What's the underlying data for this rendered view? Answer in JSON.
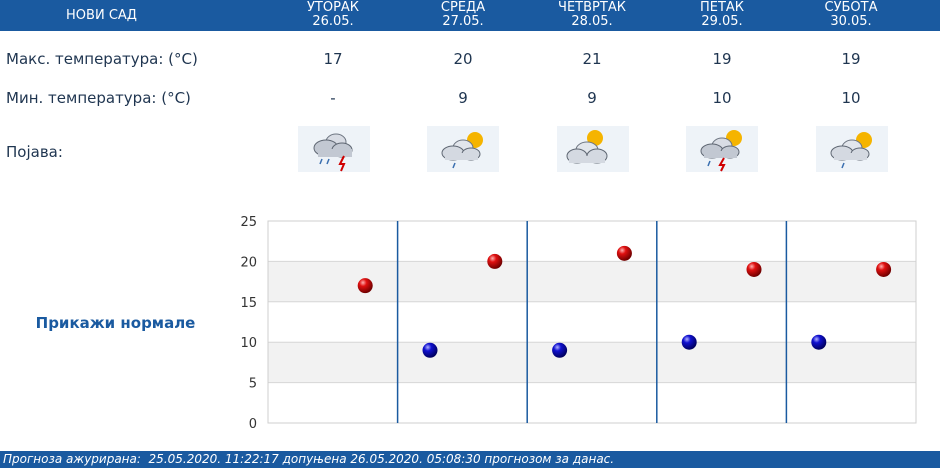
{
  "city": "НОВИ САД",
  "days": [
    {
      "name": "УТОРАК",
      "date": "26.05."
    },
    {
      "name": "СРЕДА",
      "date": "27.05."
    },
    {
      "name": "ЧЕТВРТАК",
      "date": "28.05."
    },
    {
      "name": "ПЕТАК",
      "date": "29.05."
    },
    {
      "name": "СУБОТА",
      "date": "30.05."
    }
  ],
  "labels": {
    "max": "Макс. температура: (°C)",
    "min": "Мин. температура: (°C)",
    "phenomenon": "Појава:"
  },
  "max_temps": [
    "17",
    "20",
    "21",
    "19",
    "19"
  ],
  "min_temps": [
    "-",
    "9",
    "9",
    "10",
    "10"
  ],
  "icons": [
    "storm-rain-icon",
    "partly-cloudy-rain-icon",
    "partly-cloudy-icon",
    "storm-sun-icon",
    "partly-cloudy-rain-icon"
  ],
  "show_normals": "Прикажи нормале",
  "footer": "Прогноза ажурирана:  25.05.2020. 11:22:17 допуњена 26.05.2020. 05:08:30 прогнозом за данас.",
  "chart_data": {
    "type": "scatter",
    "categories": [
      "26.05.",
      "27.05.",
      "28.05.",
      "29.05.",
      "30.05."
    ],
    "series": [
      {
        "color": "#c00000",
        "values": [
          17,
          20,
          21,
          19,
          19
        ]
      },
      {
        "color": "#0000b0",
        "values": [
          null,
          9,
          9,
          10,
          10
        ]
      }
    ],
    "ylim": [
      0,
      25
    ],
    "yticks": [
      0,
      5,
      10,
      15,
      20,
      25
    ],
    "grid": true,
    "xlabel": "",
    "ylabel": ""
  }
}
